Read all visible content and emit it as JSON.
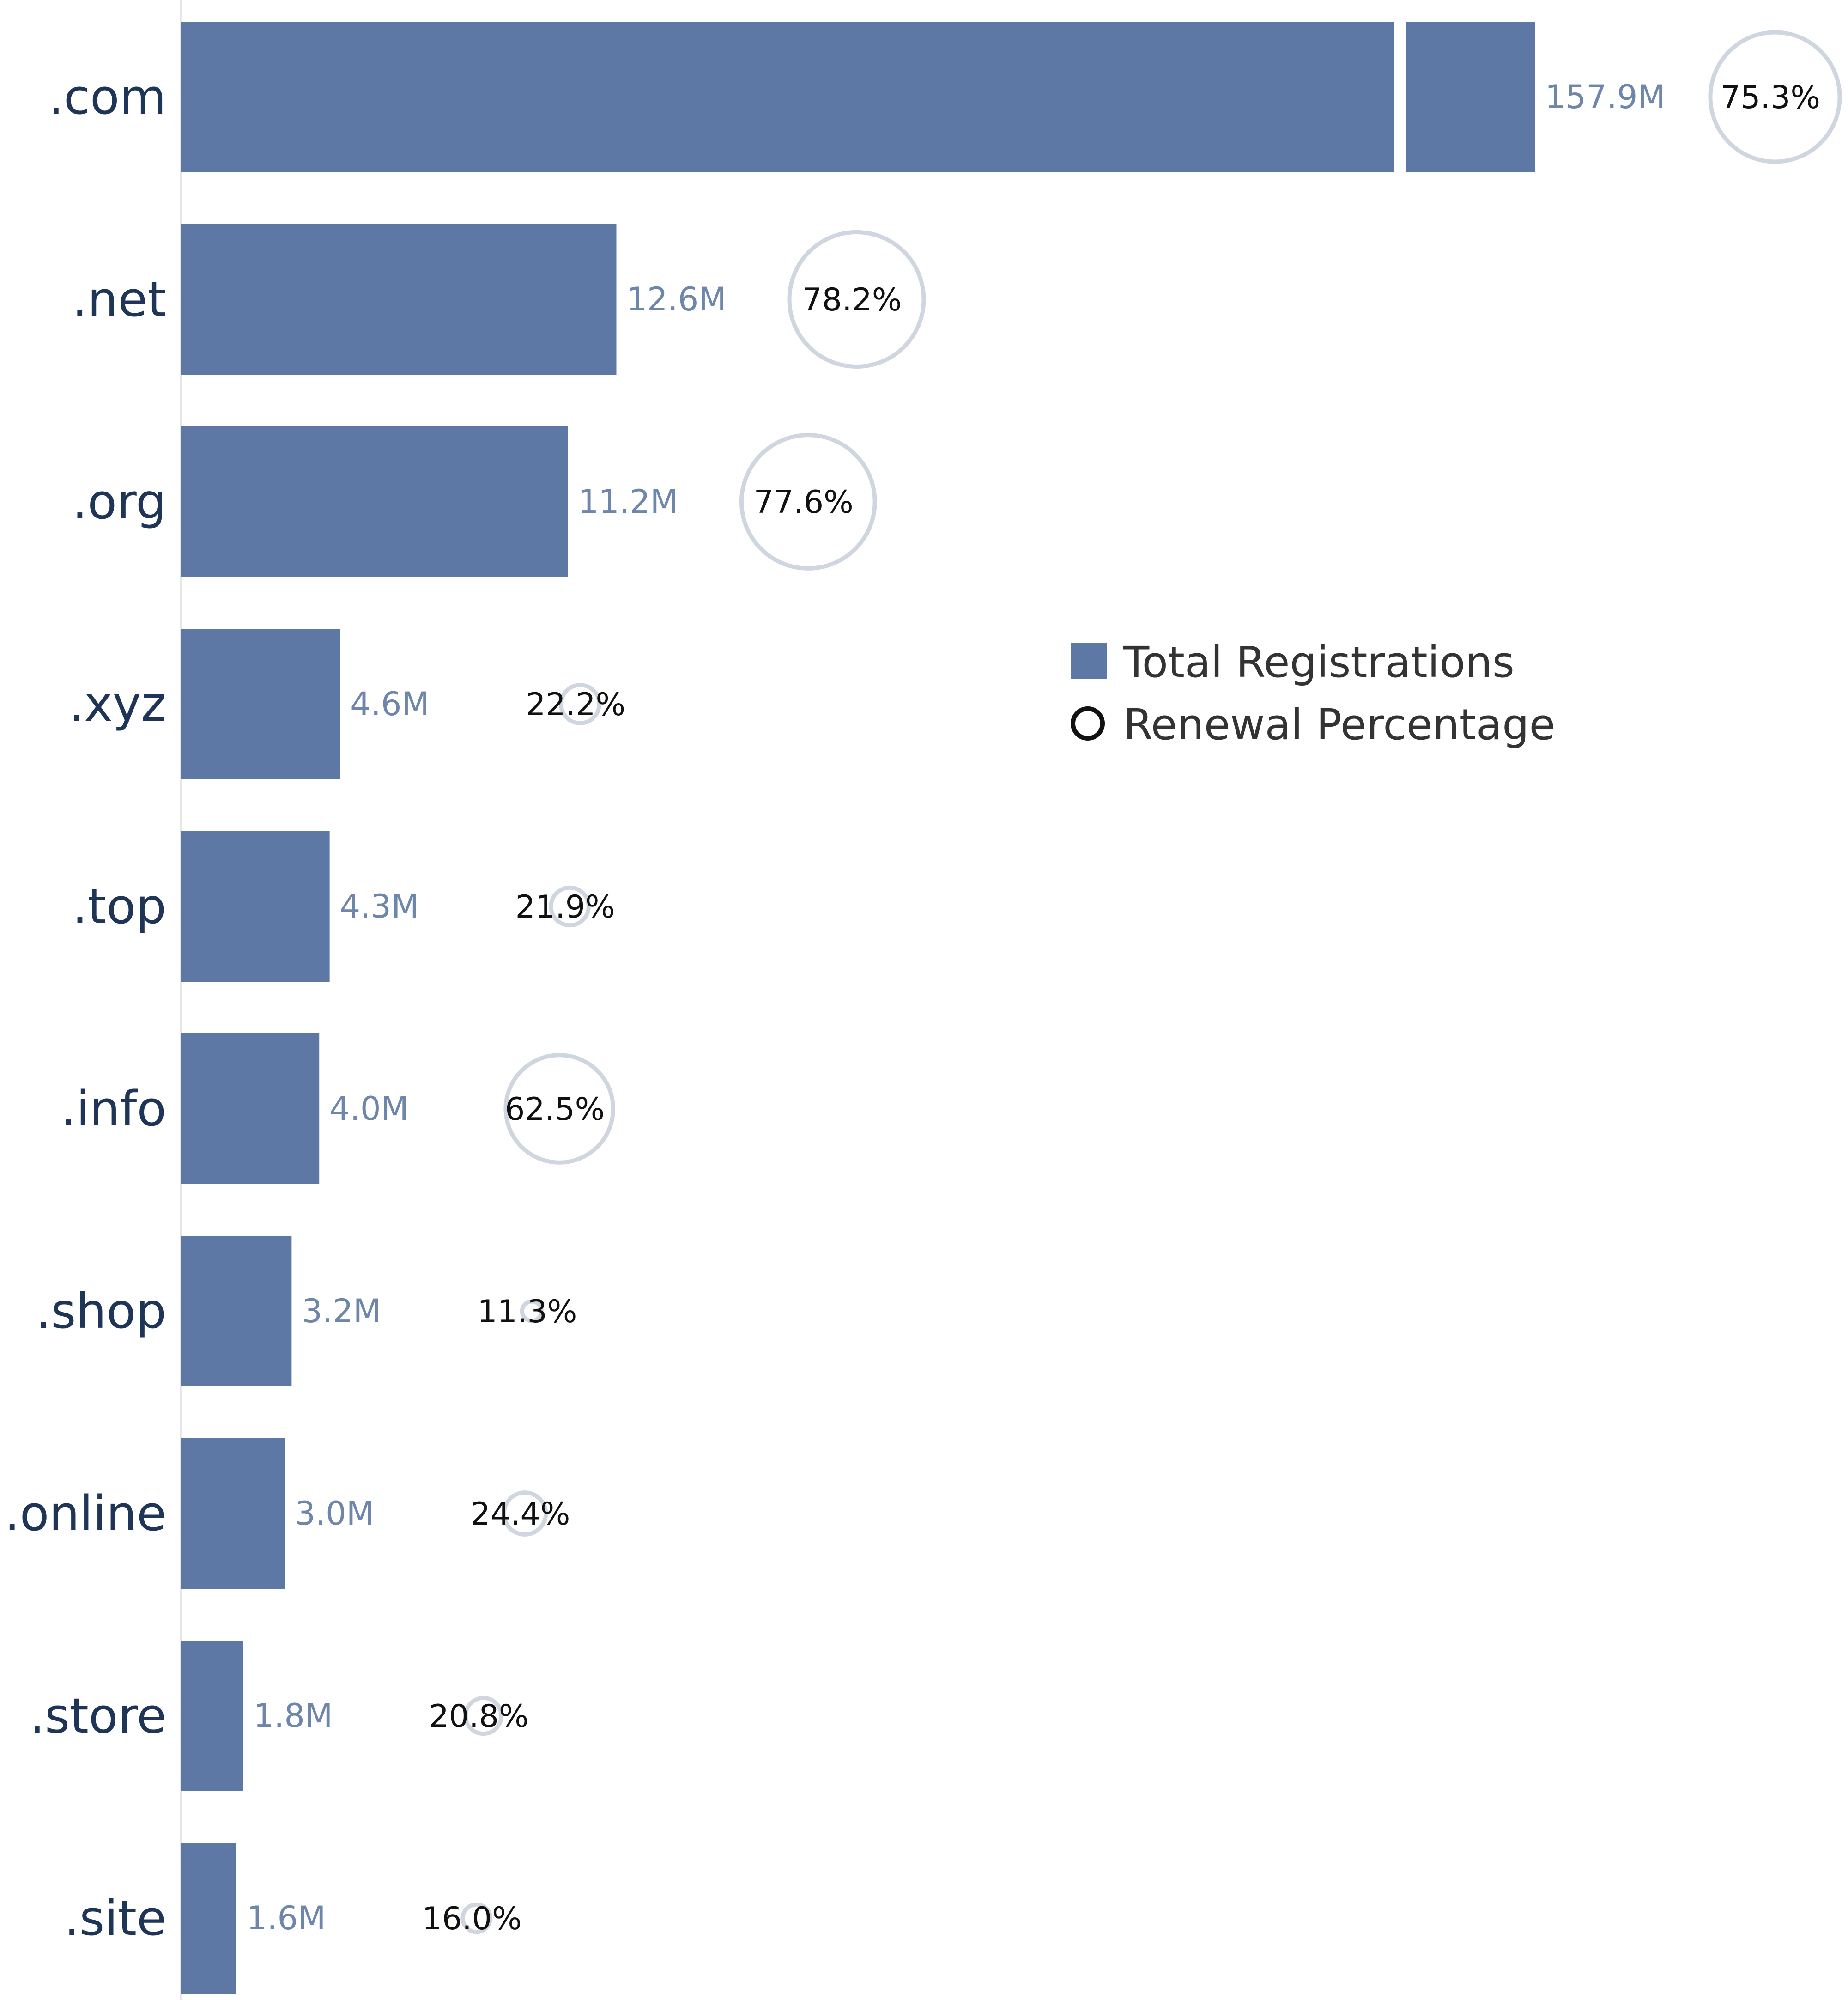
{
  "chart_data": {
    "type": "bar",
    "categories": [
      ".com",
      ".net",
      ".org",
      ".xyz",
      ".top",
      ".info",
      ".shop",
      ".online",
      ".store",
      ".site"
    ],
    "series": [
      {
        "name": "Total Registrations",
        "values": [
          157.9,
          12.6,
          11.2,
          4.6,
          4.3,
          4.0,
          3.2,
          3.0,
          1.8,
          1.6
        ],
        "value_labels": [
          "157.9M",
          "12.6M",
          "11.2M",
          "4.6M",
          "4.3M",
          "4.0M",
          "3.2M",
          "3.0M",
          "1.8M",
          "1.6M"
        ],
        "unit": "M",
        "axis_break": true
      },
      {
        "name": "Renewal Percentage",
        "values": [
          75.3,
          78.2,
          77.6,
          22.2,
          21.9,
          62.5,
          11.3,
          24.4,
          20.8,
          16.0
        ],
        "value_labels": [
          "75.3%",
          "78.2%",
          "77.6%",
          "22.2%",
          "21.9%",
          "62.5%",
          "11.3%",
          "24.4%",
          "20.8%",
          "16.0%"
        ],
        "unit": "%"
      }
    ],
    "legend": {
      "position": "right",
      "entries": [
        "Total Registrations",
        "Renewal Percentage"
      ]
    },
    "title": "",
    "xlabel": "",
    "ylabel": "",
    "grid": false
  },
  "colors": {
    "bar": "#5d78a4",
    "value_label": "#6f86ab",
    "circle_stroke": "#cfd6e0",
    "category_label": "#1f3557",
    "percent_label": "#111111",
    "legend_text": "#333333",
    "axis_line": "#e6e6e6"
  }
}
